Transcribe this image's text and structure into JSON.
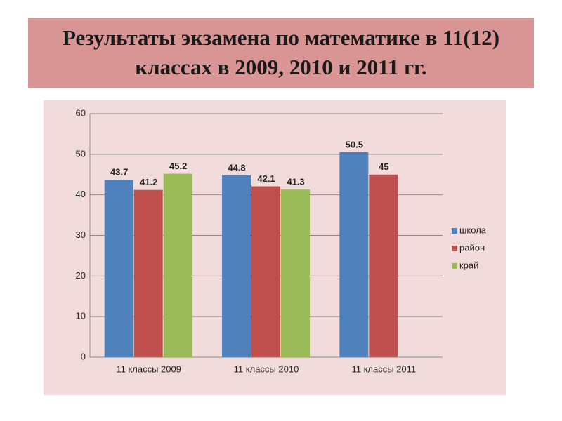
{
  "chart_data": {
    "type": "bar",
    "title": "Результаты экзамена по математике в 11(12) классах в 2009, 2010 и 2011 гг.",
    "categories": [
      "11 классы 2009",
      "11 классы 2010",
      "11 классы 2011"
    ],
    "series": [
      {
        "name": "школа",
        "color": "#4f81bd",
        "values": [
          43.7,
          44.8,
          50.5
        ]
      },
      {
        "name": "район",
        "color": "#c0504d",
        "values": [
          41.2,
          42.1,
          45
        ]
      },
      {
        "name": "край",
        "color": "#9bbb59",
        "values": [
          45.2,
          41.3,
          null
        ]
      }
    ],
    "ylim": [
      0,
      60
    ],
    "yticks": [
      0,
      10,
      20,
      30,
      40,
      50,
      60
    ],
    "grid": true,
    "legend": "right"
  }
}
